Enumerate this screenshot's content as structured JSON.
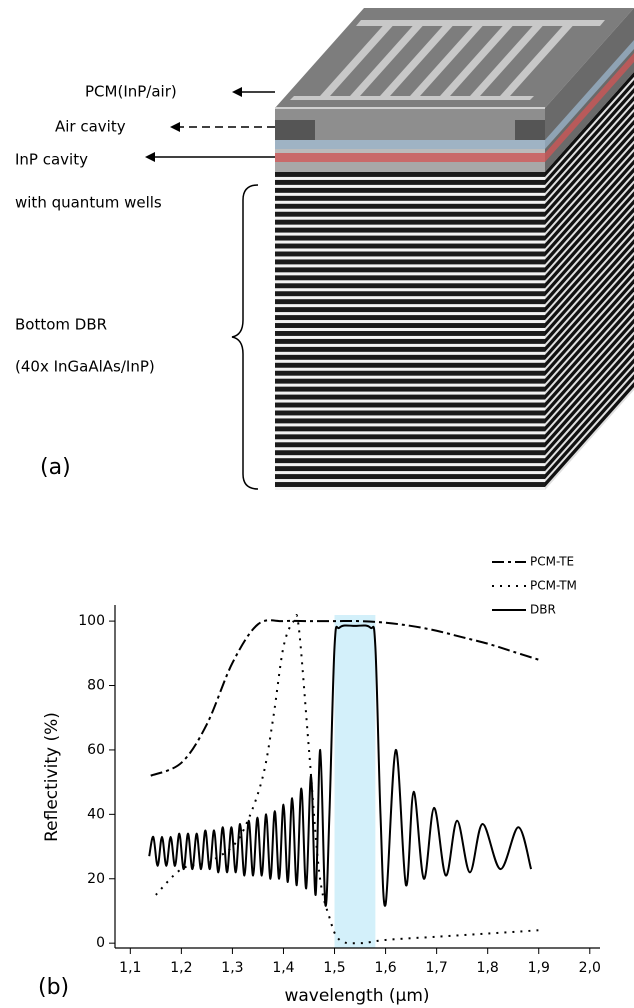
{
  "panel_a": {
    "panel_label": "(a)",
    "labels": [
      "PCM(InP/air)",
      "Air cavity",
      "InP cavity",
      "with quantum wells",
      "Bottom DBR",
      "(40x InGaAlAs/InP)"
    ]
  },
  "chart_data": {
    "type": "line",
    "panel_label": "(b)",
    "x_label": "wavelength (µm)",
    "y_label": "Reflectivity (%)",
    "xlim": [
      1.07,
      2.02
    ],
    "ylim": [
      -1.5,
      105
    ],
    "xticks": [
      {
        "value": 1.1,
        "label": "1,1"
      },
      {
        "value": 1.2,
        "label": "1,2"
      },
      {
        "value": 1.3,
        "label": "1,3"
      },
      {
        "value": 1.4,
        "label": "1,4"
      },
      {
        "value": 1.5,
        "label": "1,5"
      },
      {
        "value": 1.6,
        "label": "1,6"
      },
      {
        "value": 1.7,
        "label": "1,7"
      },
      {
        "value": 1.8,
        "label": "1,8"
      },
      {
        "value": 1.9,
        "label": "1,9"
      },
      {
        "value": 2.0,
        "label": "2,0"
      }
    ],
    "yticks": [
      0,
      20,
      40,
      60,
      80,
      100
    ],
    "highlight": {
      "x": [
        1.5,
        1.58
      ],
      "color": "#d3f0fa"
    },
    "legend": "top-right",
    "series": [
      {
        "name": "PCM-TE",
        "color": "#000000",
        "dash": "12,4,3,4",
        "x": [
          1.14,
          1.2,
          1.25,
          1.3,
          1.35,
          1.4,
          1.45,
          1.5,
          1.55,
          1.6,
          1.65,
          1.7,
          1.75,
          1.8,
          1.85,
          1.9
        ],
        "values": [
          52,
          56,
          68,
          87,
          99,
          100,
          100,
          100,
          100,
          99.5,
          98.5,
          97,
          95,
          93,
          90.5,
          88
        ]
      },
      {
        "name": "PCM-TM",
        "color": "#000000",
        "dash": "2,6",
        "x": [
          1.15,
          1.2,
          1.25,
          1.3,
          1.33,
          1.36,
          1.38,
          1.4,
          1.42,
          1.43,
          1.45,
          1.47,
          1.49,
          1.51,
          1.55,
          1.6,
          1.7,
          1.8,
          1.9
        ],
        "values": [
          15,
          23,
          25,
          30,
          38,
          52,
          70,
          92,
          100,
          98,
          60,
          22,
          8,
          1,
          0,
          1,
          2,
          3,
          4
        ]
      },
      {
        "name": "DBR",
        "color": "#000000",
        "dash": "none",
        "x": [
          1.137,
          1.145,
          1.1535,
          1.162,
          1.1705,
          1.179,
          1.1875,
          1.196,
          1.2045,
          1.213,
          1.2215,
          1.23,
          1.2385,
          1.247,
          1.2555,
          1.264,
          1.2725,
          1.281,
          1.2895,
          1.298,
          1.3065,
          1.315,
          1.3235,
          1.332,
          1.3405,
          1.349,
          1.3575,
          1.366,
          1.3745,
          1.383,
          1.3915,
          1.4,
          1.4085,
          1.417,
          1.426,
          1.435,
          1.4445,
          1.454,
          1.463,
          1.472,
          1.482,
          1.49,
          1.5,
          1.51,
          1.54,
          1.57,
          1.58,
          1.59,
          1.6,
          1.62,
          1.64,
          1.655,
          1.675,
          1.695,
          1.718,
          1.74,
          1.765,
          1.79,
          1.825,
          1.86,
          1.885
        ],
        "values": [
          27,
          33,
          24,
          33,
          24,
          33,
          24,
          34,
          23,
          34,
          23,
          34,
          23,
          35,
          23,
          35,
          22,
          36,
          22,
          36,
          22,
          37,
          21,
          38,
          21,
          39,
          21,
          40,
          20,
          41,
          20,
          43,
          19,
          45,
          18,
          48,
          17,
          52,
          15,
          60,
          12,
          40,
          92,
          98,
          98.5,
          98,
          92,
          40,
          12,
          60,
          18,
          47,
          20,
          42,
          21,
          38,
          22,
          37,
          23,
          36,
          23
        ]
      }
    ]
  }
}
